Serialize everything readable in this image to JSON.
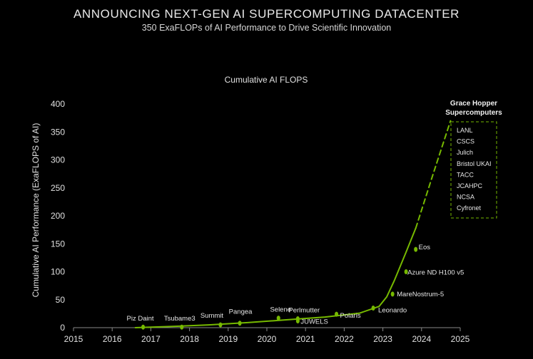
{
  "header": {
    "title": "ANNOUNCING NEXT-GEN AI SUPERCOMPUTING DATACENTER",
    "subtitle": "350 ExaFLOPs of AI Performance to Drive Scientific Innovation"
  },
  "colors": {
    "background": "#000000",
    "accent": "#76b900",
    "text": "#e0e0e0",
    "axis": "#9a9a9a"
  },
  "chart_data": {
    "type": "line",
    "title": "Cumulative AI FLOPS",
    "xlabel": "",
    "ylabel": "Cumulative AI Performance (ExaFLOPS of AI)",
    "xlim": [
      2015,
      2025
    ],
    "ylim": [
      0,
      400
    ],
    "xticks": [
      "2015",
      "2016",
      "2017",
      "2018",
      "2019",
      "2020",
      "2021",
      "2022",
      "2023",
      "2024",
      "2025"
    ],
    "yticks": [
      "0",
      "50",
      "100",
      "150",
      "200",
      "250",
      "300",
      "350",
      "400"
    ],
    "grid": false,
    "series": [
      {
        "style": "solid",
        "x": [
          2016.6,
          2017.5,
          2018.5,
          2019.5,
          2020.5,
          2021.5,
          2022.4,
          2022.9,
          2023.1,
          2023.3,
          2023.6,
          2023.85
        ],
        "y": [
          0,
          2,
          5,
          9,
          14,
          19,
          26,
          38,
          55,
          85,
          135,
          178
        ]
      },
      {
        "style": "dashed",
        "x": [
          2023.85,
          2024.3,
          2024.75
        ],
        "y": [
          178,
          275,
          370
        ]
      }
    ],
    "points": [
      {
        "label": "Piz Daint",
        "x": 2016.8,
        "y": 1
      },
      {
        "label": "Tsubame3",
        "x": 2017.8,
        "y": 1
      },
      {
        "label": "Summit",
        "x": 2018.8,
        "y": 5
      },
      {
        "label": "Pangea",
        "x": 2019.3,
        "y": 8
      },
      {
        "label": "Selene",
        "x": 2020.3,
        "y": 17
      },
      {
        "label": "Perlmutter",
        "x": 2020.8,
        "y": 16
      },
      {
        "label": "JUWELS",
        "x": 2020.8,
        "y": 12
      },
      {
        "label": "Polaris",
        "x": 2021.8,
        "y": 24
      },
      {
        "label": "Leonardo",
        "x": 2022.75,
        "y": 35
      },
      {
        "label": "MareNostrum-5",
        "x": 2023.25,
        "y": 60
      },
      {
        "label": "Azure ND H100 v5",
        "x": 2023.6,
        "y": 100
      },
      {
        "label": "Eos",
        "x": 2023.85,
        "y": 140
      }
    ],
    "annotation": {
      "title_line1": "Grace Hopper",
      "title_line2": "Supercomputers",
      "items": [
        "LANL",
        "CSCS",
        "Julich",
        "Bristol UKAI",
        "TACC",
        "JCAHPC",
        "NCSA",
        "Cyfronet"
      ]
    }
  }
}
